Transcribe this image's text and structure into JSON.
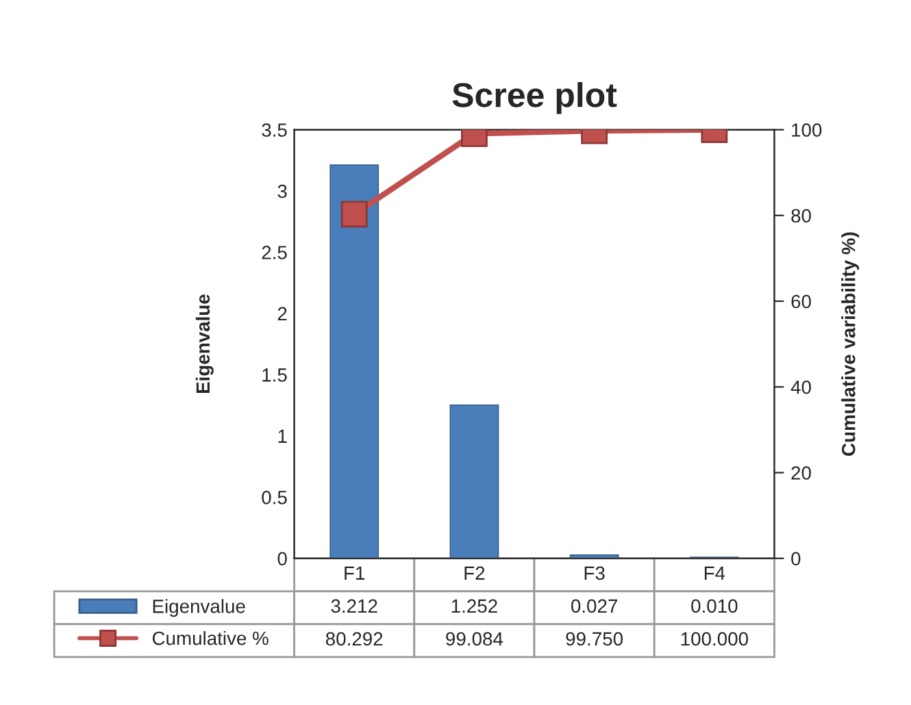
{
  "chart_data": {
    "type": "bar",
    "title": "Scree plot",
    "ylabel": "Eigenvalue",
    "y2label": "Cumulative variability %)",
    "categories": [
      "F1",
      "F2",
      "F3",
      "F4"
    ],
    "series": [
      {
        "name": "Eigenvalue",
        "color": "#4a7ebb",
        "values": [
          3.212,
          1.252,
          0.027,
          0.01
        ],
        "value_labels": [
          "3.212",
          "1.252",
          "0.027",
          "0.010"
        ]
      },
      {
        "name": "Cumulative %",
        "type": "line",
        "axis": "y2",
        "color": "#c0504d",
        "marker": "square",
        "values": [
          80.292,
          99.084,
          99.75,
          100.0
        ],
        "value_labels": [
          "80.292",
          "99.084",
          "99.750",
          "100.000"
        ]
      }
    ],
    "ylim": [
      0,
      3.5
    ],
    "yticks": [
      0,
      0.5,
      1,
      1.5,
      2,
      2.5,
      3,
      3.5
    ],
    "y2lim": [
      0,
      100
    ],
    "y2ticks": [
      0,
      20,
      40,
      60,
      80,
      100
    ],
    "grid": false,
    "legend": "bottom"
  }
}
